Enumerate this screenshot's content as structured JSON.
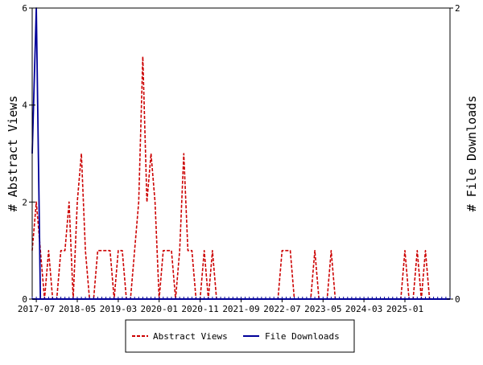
{
  "chart_data": {
    "type": "line",
    "title": "",
    "x_tick_labels": [
      "2017-07",
      "2018-05",
      "2019-03",
      "2020-01",
      "2020-11",
      "2021-09",
      "2022-07",
      "2023-05",
      "2024-03",
      "2025-01"
    ],
    "x_start": "2017-06",
    "x_end": "2025-12",
    "y_left": {
      "label": "# Abstract Views",
      "ylim": [
        0,
        6
      ],
      "ticks": [
        0,
        2,
        4,
        6
      ]
    },
    "y_right": {
      "label": "# File Downloads",
      "ylim": [
        0,
        2
      ],
      "ticks": [
        0,
        2
      ]
    },
    "grid": false,
    "legend_position": "bottom-center",
    "series": [
      {
        "name": "Abstract Views",
        "axis": "left",
        "color": "#cc0000",
        "style": "dashed",
        "x": [
          "2017-06",
          "2017-07",
          "2017-08",
          "2017-09",
          "2017-10",
          "2017-11",
          "2017-12",
          "2018-01",
          "2018-02",
          "2018-03",
          "2018-04",
          "2018-05",
          "2018-06",
          "2018-07",
          "2018-08",
          "2018-09",
          "2018-10",
          "2018-11",
          "2018-12",
          "2019-01",
          "2019-02",
          "2019-03",
          "2019-04",
          "2019-05",
          "2019-06",
          "2019-07",
          "2019-08",
          "2019-09",
          "2019-10",
          "2019-11",
          "2019-12",
          "2020-01",
          "2020-02",
          "2020-03",
          "2020-04",
          "2020-05",
          "2020-06",
          "2020-07",
          "2020-08",
          "2020-09",
          "2020-10",
          "2020-11",
          "2020-12",
          "2021-01",
          "2021-02",
          "2021-03",
          "2021-04",
          "2021-05",
          "2021-06",
          "2021-07",
          "2021-08",
          "2021-09",
          "2021-10",
          "2021-11",
          "2021-12",
          "2022-01",
          "2022-02",
          "2022-03",
          "2022-04",
          "2022-05",
          "2022-06",
          "2022-07",
          "2022-08",
          "2022-09",
          "2022-10",
          "2022-11",
          "2022-12",
          "2023-01",
          "2023-02",
          "2023-03",
          "2023-04",
          "2023-05",
          "2023-06",
          "2023-07",
          "2023-08",
          "2023-09",
          "2023-10",
          "2023-11",
          "2023-12",
          "2024-01",
          "2024-02",
          "2024-03",
          "2024-04",
          "2024-05",
          "2024-06",
          "2024-07",
          "2024-08",
          "2024-09",
          "2024-10",
          "2024-11",
          "2024-12",
          "2025-01",
          "2025-02",
          "2025-03",
          "2025-04",
          "2025-05",
          "2025-06",
          "2025-07",
          "2025-08",
          "2025-09",
          "2025-10",
          "2025-11",
          "2025-12"
        ],
        "values": [
          1,
          2,
          1,
          0,
          1,
          0,
          0,
          1,
          1,
          2,
          0,
          2,
          3,
          1,
          0,
          0,
          1,
          1,
          1,
          1,
          0,
          1,
          1,
          0,
          0,
          1,
          2,
          5,
          2,
          3,
          2,
          0,
          1,
          1,
          1,
          0,
          1,
          3,
          1,
          1,
          0,
          0,
          1,
          0,
          1,
          0,
          0,
          0,
          0,
          0,
          0,
          0,
          0,
          0,
          0,
          0,
          0,
          0,
          0,
          0,
          0,
          1,
          1,
          1,
          0,
          0,
          0,
          0,
          0,
          1,
          0,
          0,
          0,
          1,
          0,
          0,
          0,
          0,
          0,
          0,
          0,
          0,
          0,
          0,
          0,
          0,
          0,
          0,
          0,
          0,
          0,
          1,
          0,
          0,
          1,
          0,
          1,
          0,
          0,
          0,
          0,
          0,
          0
        ]
      },
      {
        "name": "File Downloads",
        "axis": "right",
        "color": "#000099",
        "style": "solid",
        "x": [
          "2017-06",
          "2017-07",
          "2017-08",
          "2017-09",
          "2017-10",
          "2017-11",
          "2017-12",
          "2018-01",
          "2018-02",
          "2018-03",
          "2018-04",
          "2018-05",
          "2018-06",
          "2018-07",
          "2018-08",
          "2018-09",
          "2018-10",
          "2018-11",
          "2018-12",
          "2019-01",
          "2019-02",
          "2019-03",
          "2019-04",
          "2019-05",
          "2019-06",
          "2019-07",
          "2019-08",
          "2019-09",
          "2019-10",
          "2019-11",
          "2019-12",
          "2020-01",
          "2020-02",
          "2020-03",
          "2020-04",
          "2020-05",
          "2020-06",
          "2020-07",
          "2020-08",
          "2020-09",
          "2020-10",
          "2020-11",
          "2020-12",
          "2021-01",
          "2021-02",
          "2021-03",
          "2021-04",
          "2021-05",
          "2021-06",
          "2021-07",
          "2021-08",
          "2021-09",
          "2021-10",
          "2021-11",
          "2021-12",
          "2022-01",
          "2022-02",
          "2022-03",
          "2022-04",
          "2022-05",
          "2022-06",
          "2022-07",
          "2022-08",
          "2022-09",
          "2022-10",
          "2022-11",
          "2022-12",
          "2023-01",
          "2023-02",
          "2023-03",
          "2023-04",
          "2023-05",
          "2023-06",
          "2023-07",
          "2023-08",
          "2023-09",
          "2023-10",
          "2023-11",
          "2023-12",
          "2024-01",
          "2024-02",
          "2024-03",
          "2024-04",
          "2024-05",
          "2024-06",
          "2024-07",
          "2024-08",
          "2024-09",
          "2024-10",
          "2024-11",
          "2024-12",
          "2025-01",
          "2025-02",
          "2025-03",
          "2025-04",
          "2025-05",
          "2025-06",
          "2025-07",
          "2025-08",
          "2025-09",
          "2025-10",
          "2025-11",
          "2025-12"
        ],
        "values": [
          1,
          2,
          0,
          0,
          0,
          0,
          0,
          0,
          0,
          0,
          0,
          0,
          0,
          0,
          0,
          0,
          0,
          0,
          0,
          0,
          0,
          0,
          0,
          0,
          0,
          0,
          0,
          0,
          0,
          0,
          0,
          0,
          0,
          0,
          0,
          0,
          0,
          0,
          0,
          0,
          0,
          0,
          0,
          0,
          0,
          0,
          0,
          0,
          0,
          0,
          0,
          0,
          0,
          0,
          0,
          0,
          0,
          0,
          0,
          0,
          0,
          0,
          0,
          0,
          0,
          0,
          0,
          0,
          0,
          0,
          0,
          0,
          0,
          0,
          0,
          0,
          0,
          0,
          0,
          0,
          0,
          0,
          0,
          0,
          0,
          0,
          0,
          0,
          0,
          0,
          0,
          0,
          0,
          0,
          0,
          0,
          0,
          0,
          0,
          0,
          0,
          0,
          0
        ]
      }
    ]
  }
}
